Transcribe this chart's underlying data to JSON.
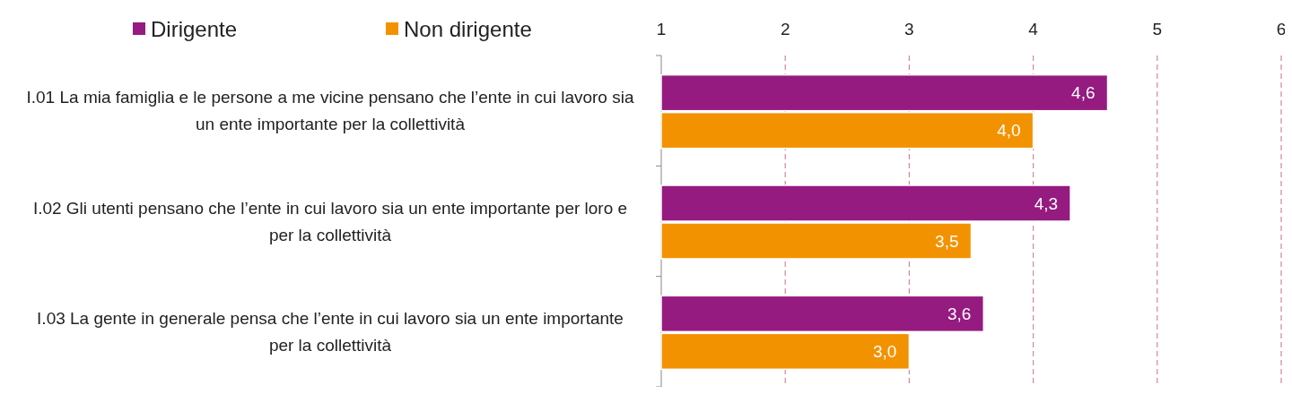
{
  "chart_data": {
    "type": "bar",
    "orientation": "horizontal",
    "categories": [
      "I.01  La mia famiglia e le persone a me vicine pensano che l’ente in cui lavoro sia un ente importante per la collettività",
      "I.02  Gli utenti pensano che l’ente in cui lavoro sia un ente importante per loro e per la collettività",
      "I.03  La gente in generale pensa che l’ente in cui lavoro sia un ente importante per la collettività"
    ],
    "series": [
      {
        "name": "Dirigente",
        "color": "#951b81",
        "values": [
          4.6,
          4.3,
          3.6
        ],
        "value_labels": [
          "4,6",
          "4,3",
          "3,6"
        ]
      },
      {
        "name": "Non dirigente",
        "color": "#f39200",
        "values": [
          4.0,
          3.5,
          3.0
        ],
        "value_labels": [
          "4,0",
          "3,5",
          "3,0"
        ]
      }
    ],
    "xlim": [
      1,
      6
    ],
    "xticks": [
      1,
      2,
      3,
      4,
      5,
      6
    ],
    "grid": "x",
    "legend": "top left"
  }
}
